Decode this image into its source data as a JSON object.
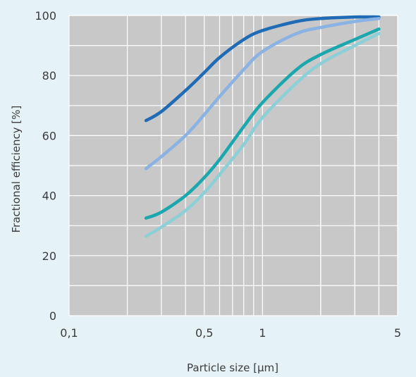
{
  "chart_data": {
    "type": "line",
    "title": "",
    "xlabel": "Particle size [µm]",
    "ylabel": "Fractional efficiency [%]",
    "x_scale": "log",
    "xlim": [
      0.1,
      5
    ],
    "ylim": [
      0,
      100
    ],
    "x_ticks": [
      {
        "value": 0.1,
        "label": "0,1"
      },
      {
        "value": 0.5,
        "label": "0,5"
      },
      {
        "value": 1,
        "label": "1"
      },
      {
        "value": 5,
        "label": "5"
      }
    ],
    "y_ticks": [
      {
        "value": 0,
        "label": "0"
      },
      {
        "value": 20,
        "label": "20"
      },
      {
        "value": 40,
        "label": "40"
      },
      {
        "value": 60,
        "label": "60"
      },
      {
        "value": 80,
        "label": "80"
      },
      {
        "value": 100,
        "label": "100"
      }
    ],
    "grid": true,
    "background_color": "#e5f2f7",
    "plot_background_color": "#c8c8c8",
    "grid_color": "#ffffff",
    "series": [
      {
        "color": "#1f6bb5",
        "x": [
          0.25,
          0.3,
          0.4,
          0.5,
          0.6,
          0.8,
          1.0,
          1.5,
          2.0,
          3.0,
          4.0
        ],
        "y": [
          65,
          68,
          75,
          81,
          86,
          92,
          95,
          98,
          99,
          99.5,
          99.5
        ]
      },
      {
        "color": "#8ab2e2",
        "x": [
          0.25,
          0.3,
          0.4,
          0.5,
          0.6,
          0.8,
          1.0,
          1.5,
          2.0,
          3.0,
          4.0
        ],
        "y": [
          49,
          53,
          60,
          67,
          73,
          82,
          88,
          94,
          96,
          98,
          99
        ]
      },
      {
        "color": "#1aa7ae",
        "x": [
          0.25,
          0.3,
          0.4,
          0.5,
          0.6,
          0.8,
          1.0,
          1.5,
          2.0,
          3.0,
          4.0
        ],
        "y": [
          32.5,
          34.5,
          40,
          46,
          52,
          63,
          71,
          82,
          87,
          92,
          95.5
        ]
      },
      {
        "color": "#8ccfd6",
        "x": [
          0.25,
          0.3,
          0.4,
          0.5,
          0.6,
          0.8,
          1.0,
          1.5,
          2.0,
          3.0,
          4.0
        ],
        "y": [
          26.5,
          29.5,
          35,
          41,
          47,
          57,
          66,
          77.5,
          84,
          90,
          94
        ]
      }
    ]
  }
}
